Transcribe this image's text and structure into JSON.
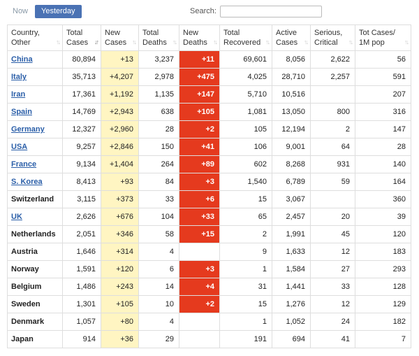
{
  "tabs": {
    "now": "Now",
    "yesterday": "Yesterday"
  },
  "search": {
    "label": "Search:",
    "value": ""
  },
  "colors": {
    "accent": "#4a72b4",
    "new_cases_bg": "#fff5c2",
    "new_deaths_bg": "#e53a1e",
    "link": "#2a5ea8"
  },
  "columns": [
    {
      "line1": "Country,",
      "line2": "Other"
    },
    {
      "line1": "Total",
      "line2": "Cases"
    },
    {
      "line1": "New",
      "line2": "Cases"
    },
    {
      "line1": "Total",
      "line2": "Deaths"
    },
    {
      "line1": "New",
      "line2": "Deaths"
    },
    {
      "line1": "Total",
      "line2": "Recovered"
    },
    {
      "line1": "Active",
      "line2": "Cases"
    },
    {
      "line1": "Serious,",
      "line2": "Critical"
    },
    {
      "line1": "Tot Cases/",
      "line2": "1M pop"
    }
  ],
  "rows": [
    {
      "country": "China",
      "link": true,
      "total_cases": "80,894",
      "new_cases": "+13",
      "total_deaths": "3,237",
      "new_deaths": "+11",
      "total_recovered": "69,601",
      "active_cases": "8,056",
      "serious": "2,622",
      "per_million": "56"
    },
    {
      "country": "Italy",
      "link": true,
      "total_cases": "35,713",
      "new_cases": "+4,207",
      "total_deaths": "2,978",
      "new_deaths": "+475",
      "total_recovered": "4,025",
      "active_cases": "28,710",
      "serious": "2,257",
      "per_million": "591"
    },
    {
      "country": "Iran",
      "link": true,
      "total_cases": "17,361",
      "new_cases": "+1,192",
      "total_deaths": "1,135",
      "new_deaths": "+147",
      "total_recovered": "5,710",
      "active_cases": "10,516",
      "serious": "",
      "per_million": "207"
    },
    {
      "country": "Spain",
      "link": true,
      "total_cases": "14,769",
      "new_cases": "+2,943",
      "total_deaths": "638",
      "new_deaths": "+105",
      "total_recovered": "1,081",
      "active_cases": "13,050",
      "serious": "800",
      "per_million": "316"
    },
    {
      "country": "Germany",
      "link": true,
      "total_cases": "12,327",
      "new_cases": "+2,960",
      "total_deaths": "28",
      "new_deaths": "+2",
      "total_recovered": "105",
      "active_cases": "12,194",
      "serious": "2",
      "per_million": "147"
    },
    {
      "country": "USA",
      "link": true,
      "total_cases": "9,257",
      "new_cases": "+2,846",
      "total_deaths": "150",
      "new_deaths": "+41",
      "total_recovered": "106",
      "active_cases": "9,001",
      "serious": "64",
      "per_million": "28"
    },
    {
      "country": "France",
      "link": true,
      "total_cases": "9,134",
      "new_cases": "+1,404",
      "total_deaths": "264",
      "new_deaths": "+89",
      "total_recovered": "602",
      "active_cases": "8,268",
      "serious": "931",
      "per_million": "140"
    },
    {
      "country": "S. Korea",
      "link": true,
      "total_cases": "8,413",
      "new_cases": "+93",
      "total_deaths": "84",
      "new_deaths": "+3",
      "total_recovered": "1,540",
      "active_cases": "6,789",
      "serious": "59",
      "per_million": "164"
    },
    {
      "country": "Switzerland",
      "link": false,
      "total_cases": "3,115",
      "new_cases": "+373",
      "total_deaths": "33",
      "new_deaths": "+6",
      "total_recovered": "15",
      "active_cases": "3,067",
      "serious": "",
      "per_million": "360"
    },
    {
      "country": "UK",
      "link": true,
      "total_cases": "2,626",
      "new_cases": "+676",
      "total_deaths": "104",
      "new_deaths": "+33",
      "total_recovered": "65",
      "active_cases": "2,457",
      "serious": "20",
      "per_million": "39"
    },
    {
      "country": "Netherlands",
      "link": false,
      "total_cases": "2,051",
      "new_cases": "+346",
      "total_deaths": "58",
      "new_deaths": "+15",
      "total_recovered": "2",
      "active_cases": "1,991",
      "serious": "45",
      "per_million": "120"
    },
    {
      "country": "Austria",
      "link": false,
      "total_cases": "1,646",
      "new_cases": "+314",
      "total_deaths": "4",
      "new_deaths": "",
      "total_recovered": "9",
      "active_cases": "1,633",
      "serious": "12",
      "per_million": "183"
    },
    {
      "country": "Norway",
      "link": false,
      "total_cases": "1,591",
      "new_cases": "+120",
      "total_deaths": "6",
      "new_deaths": "+3",
      "total_recovered": "1",
      "active_cases": "1,584",
      "serious": "27",
      "per_million": "293"
    },
    {
      "country": "Belgium",
      "link": false,
      "total_cases": "1,486",
      "new_cases": "+243",
      "total_deaths": "14",
      "new_deaths": "+4",
      "total_recovered": "31",
      "active_cases": "1,441",
      "serious": "33",
      "per_million": "128"
    },
    {
      "country": "Sweden",
      "link": false,
      "total_cases": "1,301",
      "new_cases": "+105",
      "total_deaths": "10",
      "new_deaths": "+2",
      "total_recovered": "15",
      "active_cases": "1,276",
      "serious": "12",
      "per_million": "129"
    },
    {
      "country": "Denmark",
      "link": false,
      "total_cases": "1,057",
      "new_cases": "+80",
      "total_deaths": "4",
      "new_deaths": "",
      "total_recovered": "1",
      "active_cases": "1,052",
      "serious": "24",
      "per_million": "182"
    },
    {
      "country": "Japan",
      "link": false,
      "total_cases": "914",
      "new_cases": "+36",
      "total_deaths": "29",
      "new_deaths": "",
      "total_recovered": "191",
      "active_cases": "694",
      "serious": "41",
      "per_million": "7"
    }
  ]
}
